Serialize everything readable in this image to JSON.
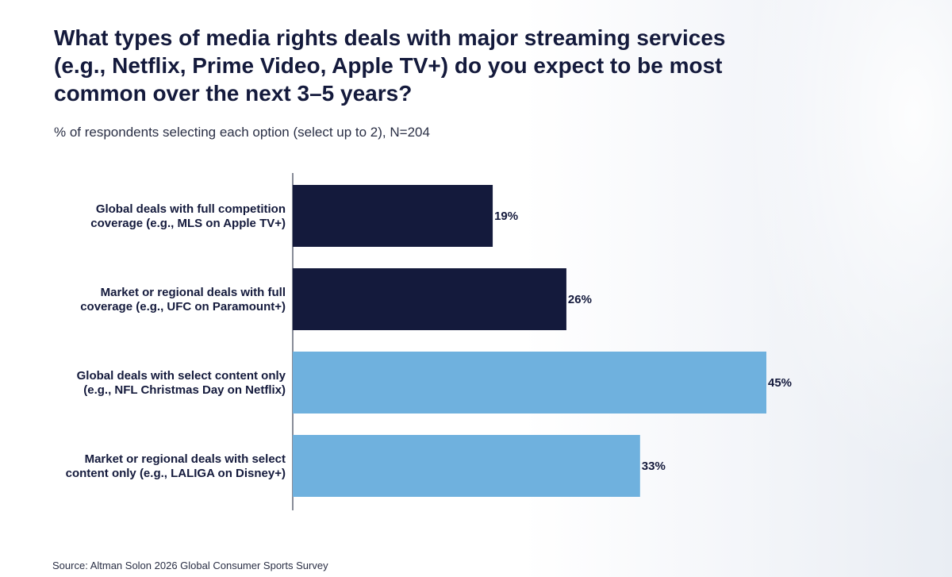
{
  "chart_data": {
    "type": "bar",
    "orientation": "horizontal",
    "title": "What types of media rights deals with major streaming services (e.g., Netflix, Prime Video, Apple TV+) do you expect to be most common over the next 3–5 years?",
    "subtitle": "% of respondents selecting each option (select up to 2), N=204",
    "categories": [
      [
        "Global deals with full competition",
        "coverage (e.g., MLS on Apple TV+)"
      ],
      [
        "Market or regional deals with full",
        "coverage (e.g., UFC on Paramount+)"
      ],
      [
        "Global deals with select content only",
        "(e.g., NFL Christmas Day on Netflix)"
      ],
      [
        "Market or regional deals with select",
        "content only (e.g., LALIGA on Disney+)"
      ]
    ],
    "values": [
      19,
      26,
      45,
      33
    ],
    "value_labels": [
      "19%",
      "26%",
      "45%",
      "33%"
    ],
    "bar_colors": [
      "#141a3c",
      "#141a3c",
      "#6fb1de",
      "#6fb1de"
    ],
    "xlim": [
      0,
      45
    ],
    "xlabel": "",
    "ylabel": "",
    "grid": false,
    "source": "Source: Altman Solon 2026 Global Consumer Sports Survey"
  },
  "colors": {
    "dark_bar": "#141a3c",
    "light_bar": "#6fb1de",
    "text": "#141a3c",
    "axis": "#3a3f55"
  }
}
